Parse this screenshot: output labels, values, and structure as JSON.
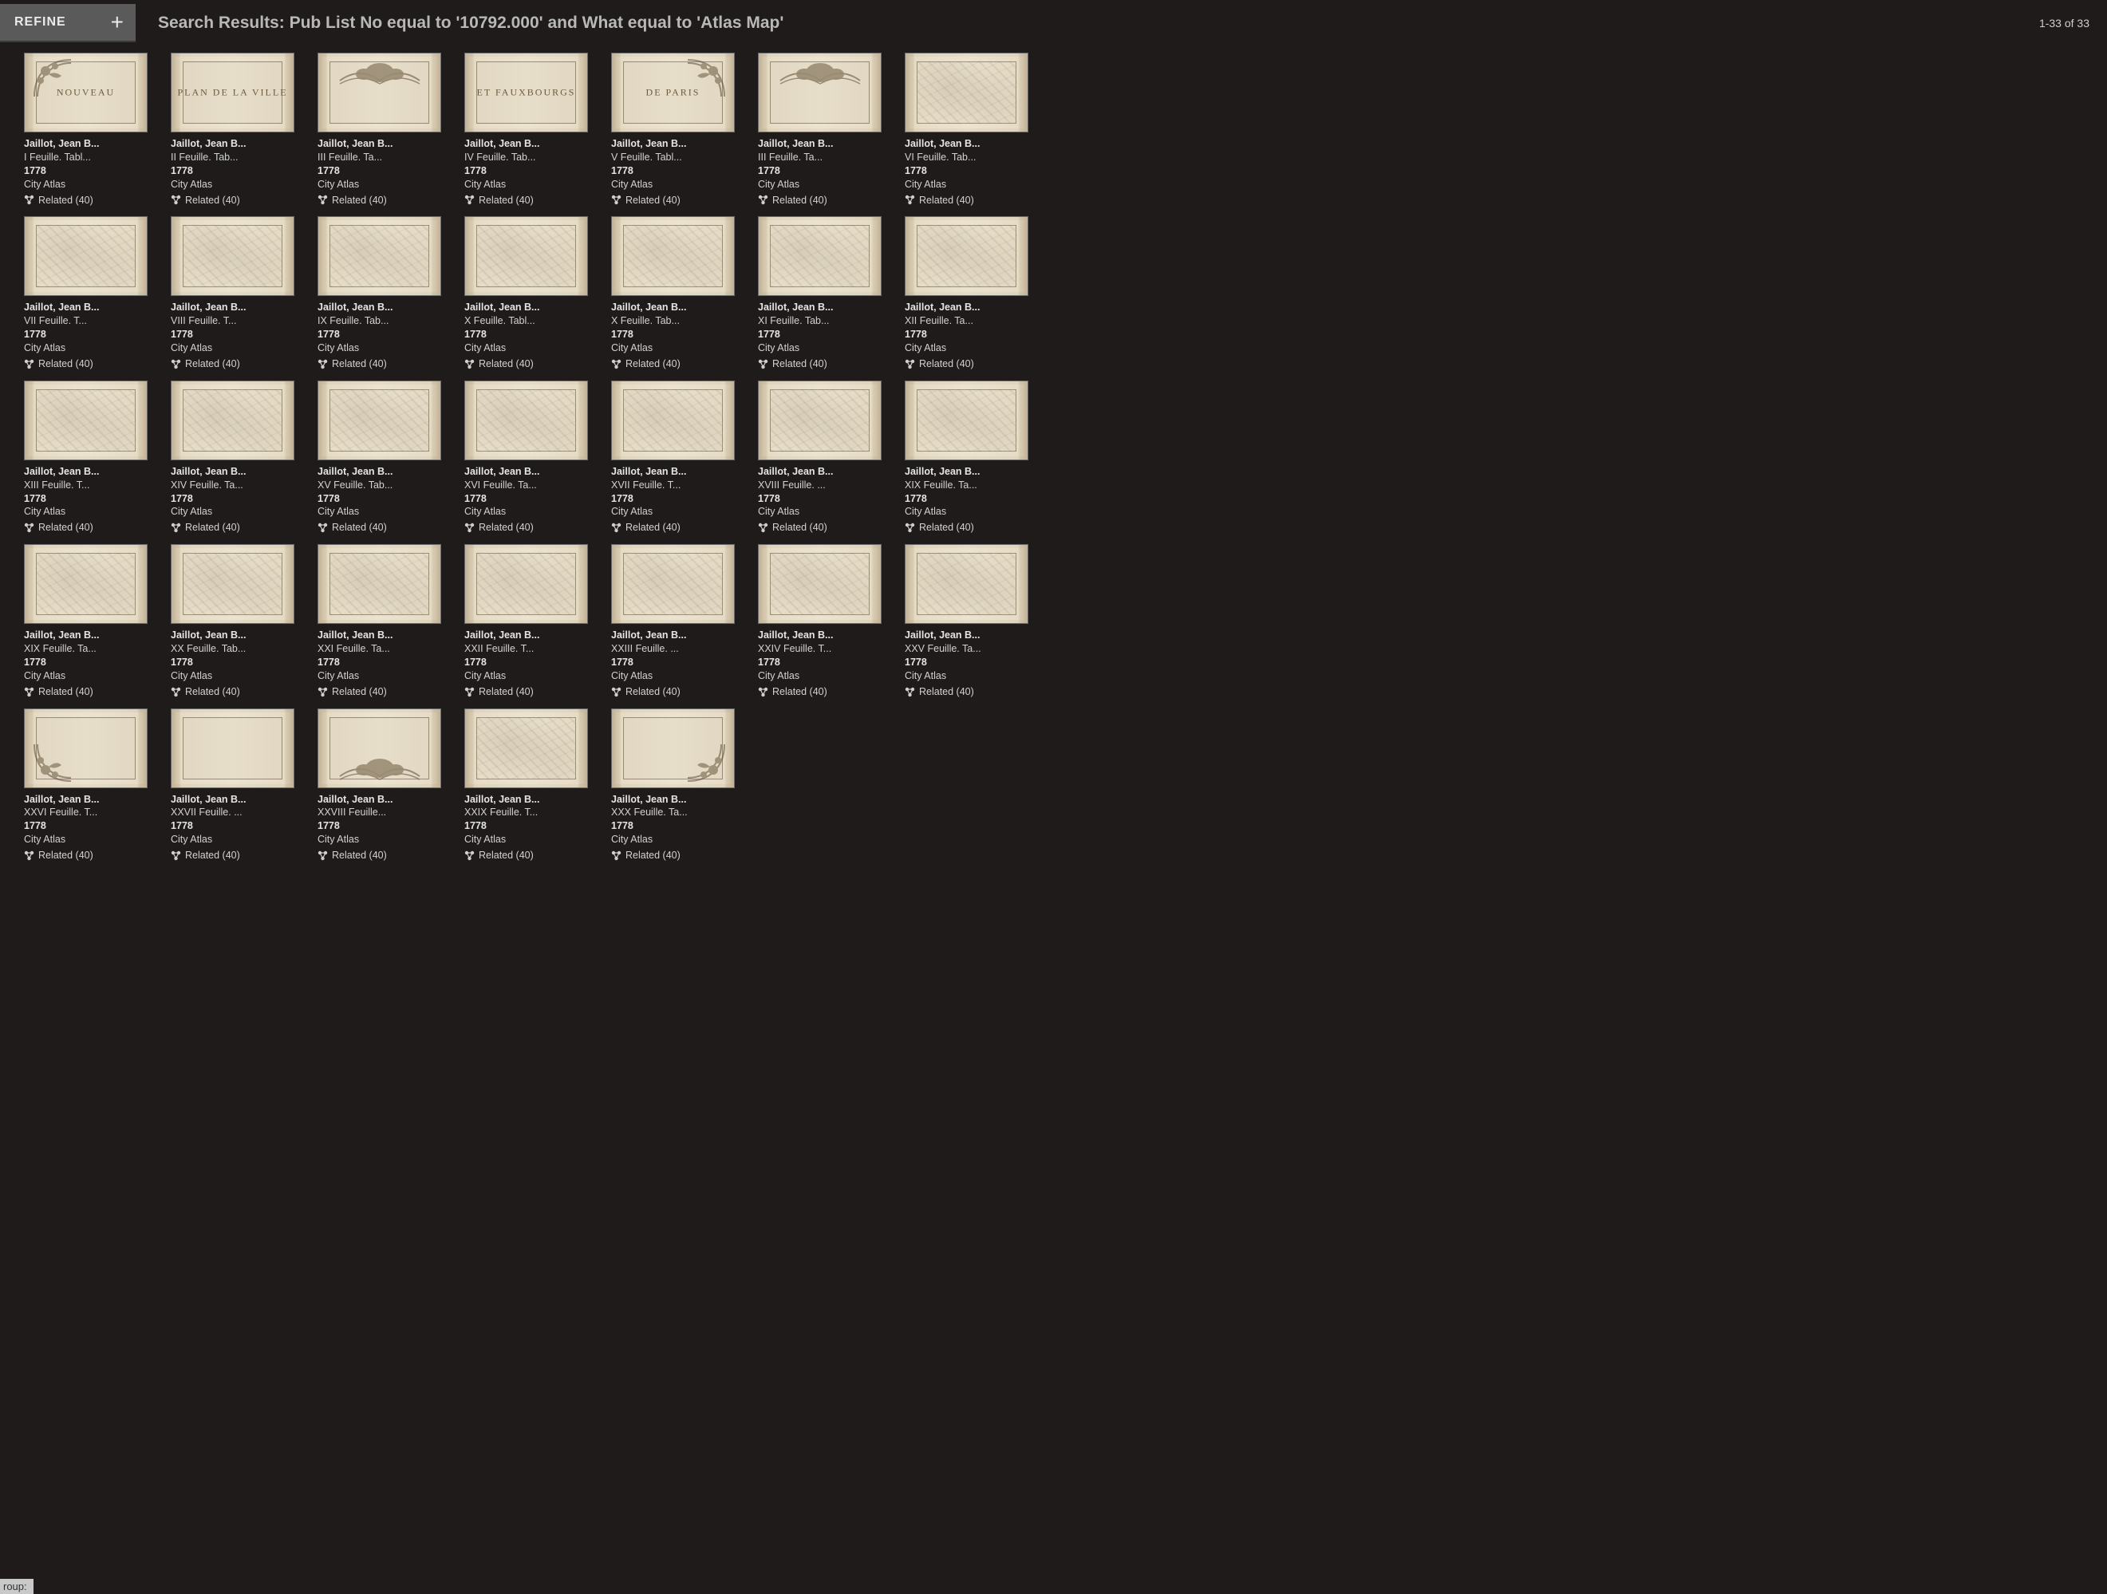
{
  "header": {
    "refine_label": "REFINE",
    "plus_glyph": "+",
    "search_title": "Search Results: Pub List No equal to '10792.000' and What equal to 'Atlas Map'",
    "result_count": "1-33 of 33"
  },
  "common": {
    "author": "Jaillot, Jean B...",
    "date": "1778",
    "type": "City Atlas",
    "related_label": "Related (40)"
  },
  "statusbar": {
    "text": "roup:"
  },
  "items": [
    {
      "title": "I Feuille. Tabl...",
      "variant": "title-plate",
      "orn": "tl",
      "plate": "NOUVEAU"
    },
    {
      "title": "II Feuille. Tab...",
      "variant": "title-plate",
      "orn": "",
      "plate": "PLAN DE LA VILLE"
    },
    {
      "title": "III Feuille. Ta...",
      "variant": "title-plate",
      "orn": "tc",
      "plate": ""
    },
    {
      "title": "IV Feuille. Tab...",
      "variant": "title-plate",
      "orn": "",
      "plate": "ET FAUXBOURGS"
    },
    {
      "title": "V Feuille. Tabl...",
      "variant": "title-plate",
      "orn": "tr",
      "plate": "DE PARIS"
    },
    {
      "title": "III Feuille. Ta...",
      "variant": "title-plate",
      "orn": "tc",
      "plate": ""
    },
    {
      "title": "VI Feuille. Tab...",
      "variant": "sheet"
    },
    {
      "title": "VII Feuille. T...",
      "variant": "sheet"
    },
    {
      "title": "VIII Feuille. T...",
      "variant": "sheet"
    },
    {
      "title": "IX Feuille. Tab...",
      "variant": "sheet"
    },
    {
      "title": "X Feuille. Tabl...",
      "variant": "sheet"
    },
    {
      "title": "X Feuille. Tab...",
      "variant": "sheet"
    },
    {
      "title": "XI Feuille. Tab...",
      "variant": "sheet"
    },
    {
      "title": "XII Feuille. Ta...",
      "variant": "sheet"
    },
    {
      "title": "XIII Feuille. T...",
      "variant": "sheet"
    },
    {
      "title": "XIV Feuille. Ta...",
      "variant": "sheet"
    },
    {
      "title": "XV Feuille. Tab...",
      "variant": "sheet"
    },
    {
      "title": "XVI Feuille. Ta...",
      "variant": "sheet"
    },
    {
      "title": "XVII Feuille. T...",
      "variant": "sheet"
    },
    {
      "title": "XVIII Feuille. ...",
      "variant": "sheet"
    },
    {
      "title": "XIX Feuille. Ta...",
      "variant": "sheet"
    },
    {
      "title": "XIX Feuille. Ta...",
      "variant": "sheet"
    },
    {
      "title": "XX Feuille. Tab...",
      "variant": "sheet"
    },
    {
      "title": "XXI Feuille. Ta...",
      "variant": "sheet"
    },
    {
      "title": "XXII Feuille. T...",
      "variant": "sheet"
    },
    {
      "title": "XXIII Feuille. ...",
      "variant": "sheet"
    },
    {
      "title": "XXIV Feuille. T...",
      "variant": "sheet"
    },
    {
      "title": "XXV Feuille. Ta...",
      "variant": "sheet"
    },
    {
      "title": "XXVI Feuille. T...",
      "variant": "title-plate",
      "orn": "bl",
      "plate": ""
    },
    {
      "title": "XXVII Feuille. ...",
      "variant": "title-plate",
      "orn": "",
      "plate": ""
    },
    {
      "title": "XXVIII Feuille...",
      "variant": "title-plate",
      "orn": "bc",
      "plate": ""
    },
    {
      "title": "XXIX Feuille. T...",
      "variant": "sheet"
    },
    {
      "title": "XXX Feuille. Ta...",
      "variant": "title-plate",
      "orn": "br",
      "plate": ""
    }
  ]
}
